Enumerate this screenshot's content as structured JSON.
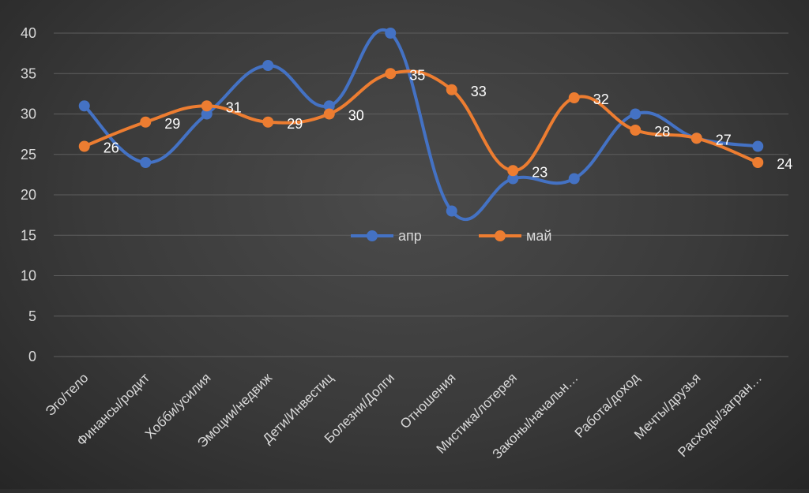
{
  "chart_data": {
    "type": "line",
    "smooth": true,
    "title": "",
    "xlabel": "",
    "ylabel": "",
    "ylim": [
      0,
      40
    ],
    "yticks": [
      0,
      5,
      10,
      15,
      20,
      25,
      30,
      35,
      40
    ],
    "grid": true,
    "legend_position": "center",
    "categories": [
      "Эго/тело",
      "Финансы/родит",
      "Хобби/усилия",
      "Эмоции/недвиж",
      "Дети/Инвестиц",
      "Болезни/Долги",
      "Отношения",
      "Мистика/лотерея",
      "Законы/начальн…",
      "Работа/доход",
      "Мечты/друзья",
      "Расходы/загран…"
    ],
    "series": [
      {
        "name": "апр",
        "color": "#4472c4",
        "values": [
          31,
          24,
          30,
          36,
          31,
          40,
          18,
          22,
          22,
          30,
          27,
          26
        ],
        "data_labels": false
      },
      {
        "name": "май",
        "color": "#ed7d31",
        "values": [
          26,
          29,
          31,
          29,
          30,
          35,
          33,
          23,
          32,
          28,
          27,
          24
        ],
        "data_labels": true
      }
    ]
  }
}
